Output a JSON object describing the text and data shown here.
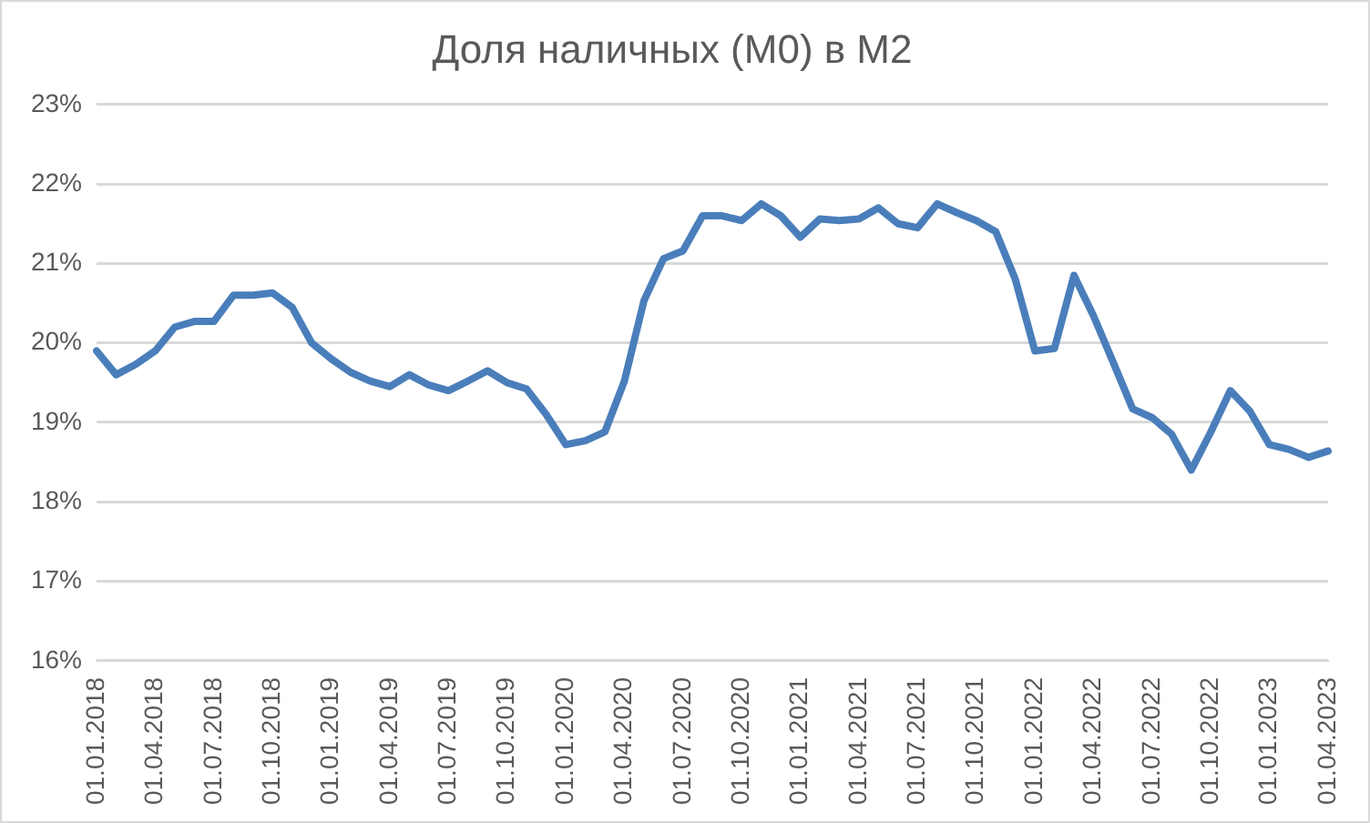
{
  "chart_data": {
    "type": "line",
    "title": "Доля наличных (M0) в M2",
    "categories": [
      "01.01.2018",
      null,
      null,
      "01.04.2018",
      null,
      null,
      "01.07.2018",
      null,
      null,
      "01.10.2018",
      null,
      null,
      "01.01.2019",
      null,
      null,
      "01.04.2019",
      null,
      null,
      "01.07.2019",
      null,
      null,
      "01.10.2019",
      null,
      null,
      "01.01.2020",
      null,
      null,
      "01.04.2020",
      null,
      null,
      "01.07.2020",
      null,
      null,
      "01.10.2020",
      null,
      null,
      "01.01.2021",
      null,
      null,
      "01.04.2021",
      null,
      null,
      "01.07.2021",
      null,
      null,
      "01.10.2021",
      null,
      null,
      "01.01.2022",
      null,
      null,
      "01.04.2022",
      null,
      null,
      "01.07.2022",
      null,
      null,
      "01.10.2022",
      null,
      null,
      "01.01.2023",
      null,
      null,
      "01.04.2023"
    ],
    "series": [
      {
        "color": "#4a7ebb",
        "values": [
          19.9,
          19.6,
          19.73,
          19.9,
          20.2,
          20.27,
          20.27,
          20.6,
          20.6,
          20.63,
          20.45,
          20.0,
          19.8,
          19.63,
          19.52,
          19.45,
          19.6,
          19.47,
          19.4,
          19.52,
          19.65,
          19.5,
          19.42,
          19.1,
          18.72,
          18.77,
          18.88,
          19.52,
          20.53,
          21.06,
          21.16,
          21.6,
          21.6,
          21.54,
          21.75,
          21.6,
          21.33,
          21.56,
          21.54,
          21.56,
          21.7,
          21.5,
          21.45,
          21.75,
          21.64,
          21.54,
          21.4,
          20.8,
          19.9,
          19.93,
          20.85,
          20.34,
          19.76,
          19.17,
          19.06,
          18.85,
          18.4,
          18.88,
          19.4,
          19.14,
          18.72,
          18.66,
          18.56,
          18.64
        ]
      }
    ],
    "ylim": [
      16,
      23
    ],
    "yticks": [
      {
        "value": 16,
        "label": "16%"
      },
      {
        "value": 17,
        "label": "17%"
      },
      {
        "value": 18,
        "label": "18%"
      },
      {
        "value": 19,
        "label": "19%"
      },
      {
        "value": 20,
        "label": "20%"
      },
      {
        "value": 21,
        "label": "21%"
      },
      {
        "value": 22,
        "label": "22%"
      },
      {
        "value": 23,
        "label": "23%"
      }
    ],
    "grid": "y",
    "legend": false,
    "marker": "none",
    "line_style": "solid"
  }
}
